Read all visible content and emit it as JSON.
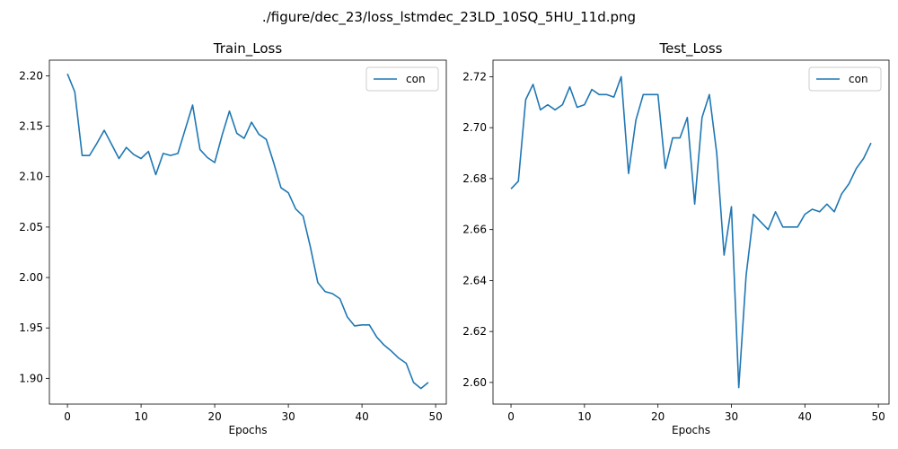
{
  "figure": {
    "suptitle": "./figure/dec_23/loss_lstmdec_23LD_10SQ_5HU_11d.png"
  },
  "colors": {
    "series": "#1f77b4",
    "axis": "#000000",
    "legend_border": "#cccccc"
  },
  "chart_data": [
    {
      "type": "line",
      "title": "Train_Loss",
      "xlabel": "Epochs",
      "ylabel": "",
      "xlim": [
        -2.45,
        51.45
      ],
      "ylim": [
        1.8745,
        2.2155
      ],
      "xticks": [
        0,
        10,
        20,
        30,
        40,
        50
      ],
      "xtick_labels": [
        "0",
        "10",
        "20",
        "30",
        "40",
        "50"
      ],
      "yticks": [
        1.9,
        1.95,
        2.0,
        2.05,
        2.1,
        2.15,
        2.2
      ],
      "ytick_labels": [
        "1.90",
        "1.95",
        "2.00",
        "2.05",
        "2.10",
        "2.15",
        "2.20"
      ],
      "legend_position": "top-right",
      "grid": false,
      "series": [
        {
          "name": "con",
          "x": [
            0,
            1,
            2,
            3,
            4,
            5,
            6,
            7,
            8,
            9,
            10,
            11,
            12,
            13,
            14,
            15,
            16,
            17,
            18,
            19,
            20,
            21,
            22,
            23,
            24,
            25,
            26,
            27,
            28,
            29,
            30,
            31,
            32,
            33,
            34,
            35,
            36,
            37,
            38,
            39,
            40,
            41,
            42,
            43,
            44,
            45,
            46,
            47,
            48,
            49
          ],
          "y": [
            2.202,
            2.184,
            2.121,
            2.121,
            2.133,
            2.146,
            2.132,
            2.118,
            2.129,
            2.122,
            2.118,
            2.125,
            2.102,
            2.123,
            2.121,
            2.123,
            2.147,
            2.171,
            2.127,
            2.119,
            2.114,
            2.141,
            2.165,
            2.143,
            2.138,
            2.154,
            2.142,
            2.137,
            2.114,
            2.089,
            2.084,
            2.068,
            2.061,
            2.03,
            1.995,
            1.986,
            1.984,
            1.979,
            1.961,
            1.952,
            1.953,
            1.953,
            1.941,
            1.933,
            1.927,
            1.92,
            1.915,
            1.896,
            1.89,
            1.896
          ]
        }
      ]
    },
    {
      "type": "line",
      "title": "Test_Loss",
      "xlabel": "Epochs",
      "ylabel": "",
      "xlim": [
        -2.45,
        51.45
      ],
      "ylim": [
        2.5915,
        2.7265
      ],
      "xticks": [
        0,
        10,
        20,
        30,
        40,
        50
      ],
      "xtick_labels": [
        "0",
        "10",
        "20",
        "30",
        "40",
        "50"
      ],
      "yticks": [
        2.6,
        2.62,
        2.64,
        2.66,
        2.68,
        2.7,
        2.72
      ],
      "ytick_labels": [
        "2.60",
        "2.62",
        "2.64",
        "2.66",
        "2.68",
        "2.70",
        "2.72"
      ],
      "legend_position": "top-right",
      "grid": false,
      "series": [
        {
          "name": "con",
          "x": [
            0,
            1,
            2,
            3,
            4,
            5,
            6,
            7,
            8,
            9,
            10,
            11,
            12,
            13,
            14,
            15,
            16,
            17,
            18,
            19,
            20,
            21,
            22,
            23,
            24,
            25,
            26,
            27,
            28,
            29,
            30,
            31,
            32,
            33,
            34,
            35,
            36,
            37,
            38,
            39,
            40,
            41,
            42,
            43,
            44,
            45,
            46,
            47,
            48,
            49
          ],
          "y": [
            2.676,
            2.679,
            2.711,
            2.717,
            2.707,
            2.709,
            2.707,
            2.709,
            2.716,
            2.708,
            2.709,
            2.715,
            2.713,
            2.713,
            2.712,
            2.72,
            2.682,
            2.703,
            2.713,
            2.713,
            2.713,
            2.684,
            2.696,
            2.696,
            2.704,
            2.67,
            2.704,
            2.713,
            2.69,
            2.65,
            2.669,
            2.598,
            2.642,
            2.666,
            2.663,
            2.66,
            2.667,
            2.661,
            2.661,
            2.661,
            2.666,
            2.668,
            2.667,
            2.67,
            2.667,
            2.674,
            2.678,
            2.684,
            2.688,
            2.694
          ]
        }
      ]
    }
  ]
}
